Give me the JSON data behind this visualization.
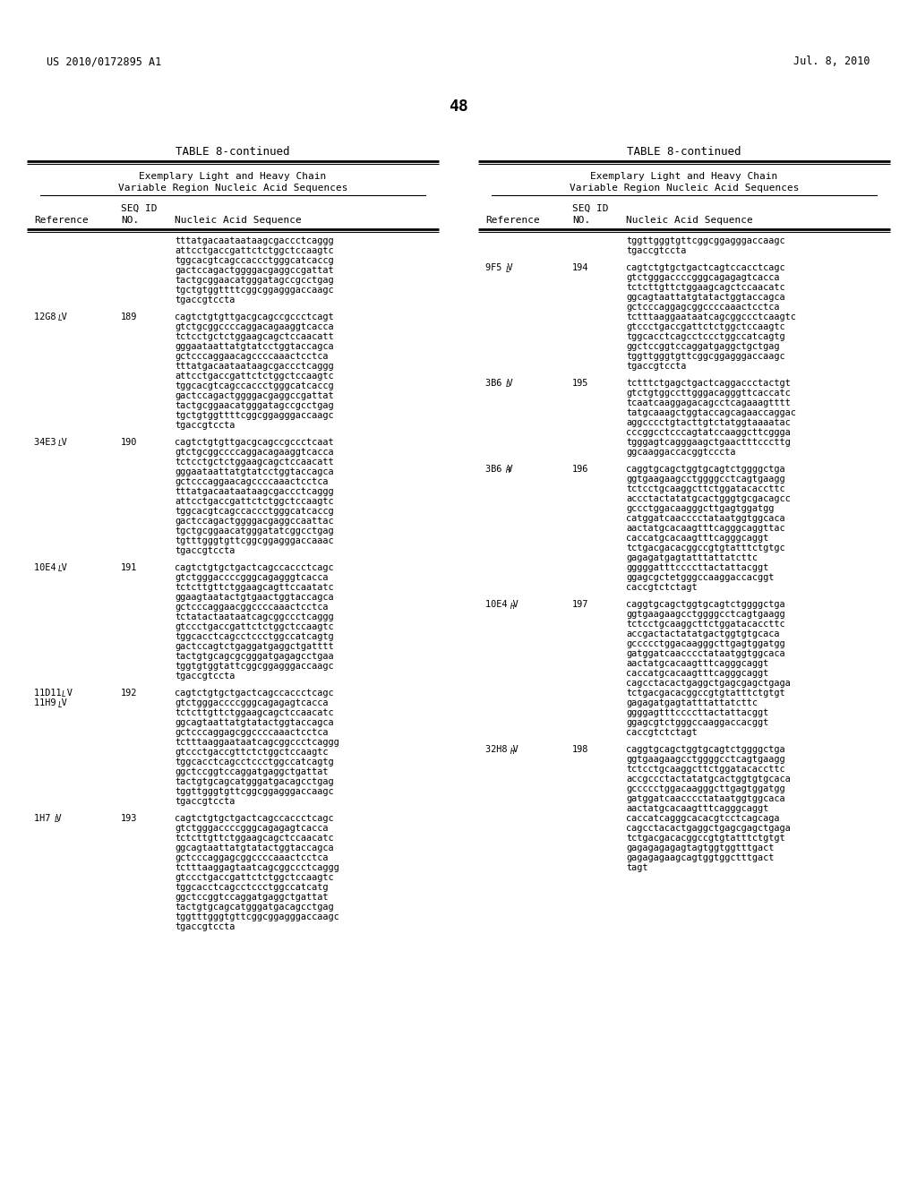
{
  "page_header_left": "US 2010/0172895 A1",
  "page_header_right": "Jul. 8, 2010",
  "page_number": "48",
  "table_title": "TABLE 8-continued",
  "subtitle1": "Exemplary Light and Heavy Chain",
  "subtitle2": "Variable Region Nucleic Acid Sequences",
  "background_color": "#ffffff",
  "left_entries": [
    {
      "ref": "",
      "ref2": "",
      "seq_id": "",
      "sequence": [
        "tttatgacaataataagcgaccctcaggg",
        "attcctgaccgattctctggctccaagtc",
        "tggcacgtcagccaccctgggcatcaccg",
        "gactccagactggggacgaggccgattat",
        "tactgcggaacatgggatagccgcctgag",
        "tgctgtggttttcggcggagggaccaagc",
        "tgaccgtccta"
      ]
    },
    {
      "ref": "12G8 V",
      "ref_sub": "L",
      "ref2": "",
      "seq_id": "189",
      "sequence": [
        "cagtctgtgttgacgcagccgccctcagt",
        "gtctgcggccccaggacagaaggtcacca",
        "tctcctgctctggaagcagctccaacatt",
        "gggaataattatgtatcctggtaccagca",
        "gctcccaggaacagccccaaactcctca",
        "tttatgacaataataagcgaccctcaggg",
        "attcctgaccgattctctggctccaagtc",
        "tggcacgtcagccaccctgggcatcaccg",
        "gactccagactggggacgaggccgattat",
        "tactgcggaacatgggatagccgcctgag",
        "tgctgtggttttcggcggagggaccaagc",
        "tgaccgtccta"
      ]
    },
    {
      "ref": "34E3 V",
      "ref_sub": "L",
      "ref2": "",
      "seq_id": "190",
      "sequence": [
        "cagtctgtgttgacgcagccgccctcaat",
        "gtctgcggccccaggacagaaggtcacca",
        "tctcctgctctggaagcagctccaacatt",
        "gggaataattatgtatcctggtaccagca",
        "gctcccaggaacagccccaaactcctca",
        "tttatgacaataataagcgaccctcaggg",
        "attcctgaccgattctctggctccaagtc",
        "tggcacgtcagccaccctgggcatcaccg",
        "gactccagactggggacgaggccaattac",
        "tgctgcggaacatgggatatcggcctgag",
        "tgtttgggtgttcggcggagggaccaaac",
        "tgaccgtccta"
      ]
    },
    {
      "ref": "10E4 V",
      "ref_sub": "L",
      "ref2": "",
      "seq_id": "191",
      "sequence": [
        "cagtctgtgctgactcagccaccctcagc",
        "gtctgggaccccgggcagagggtcacca",
        "tctcttgttctggaagcagttccaatatc",
        "ggaagtaatactgtgaactggtaccagca",
        "gctcccaggaacggccccaaactcctca",
        "tctatactaataatcagcggccctcaggg",
        "gtccctgaccgattctctggctccaagtc",
        "tggcacctcagcctccctggccatcagtg",
        "gactccagtctgaggatgaggctgatttt",
        "tactgtgcagcgcgggatgagagcctgaa",
        "tggtgtggtattcggcggagggaccaagc",
        "tgaccgtccta"
      ]
    },
    {
      "ref": "11D11 V",
      "ref_sub": "L",
      "ref2": "11H9 V",
      "ref2_sub": "L",
      "seq_id": "192",
      "sequence": [
        "cagtctgtgctgactcagccaccctcagc",
        "gtctgggaccccgggcagagagtcacca",
        "tctcttgttctggaagcagctccaacatc",
        "ggcagtaattatgtatactggtaccagca",
        "gctcccaggagcggccccaaactcctca",
        "tctttaaggaataatcagcggccctcaggg",
        "gtccctgaccgttctctggctccaagtc",
        "tggcacctcagcctccctggccatcagtg",
        "ggctccggtccaggatgaggctgattat",
        "tactgtgcagcatgggatgacagcctgag",
        "tggttgggtgttcggcggagggaccaagc",
        "tgaccgtccta"
      ]
    },
    {
      "ref": "1H7 V",
      "ref_sub": "L",
      "ref2": "",
      "seq_id": "193",
      "sequence": [
        "cagtctgtgctgactcagccaccctcagc",
        "gtctgggaccccgggcagagagtcacca",
        "tctcttgttctggaagcagctccaacatc",
        "ggcagtaattatgtatactggtaccagca",
        "gctcccaggagcggccccaaactcctca",
        "tctttaaggagtaatcagcggccctcaggg",
        "gtccctgaccgattctctggctccaagtc",
        "tggcacctcagcctccctggccatcatg",
        "ggctccggtccaggatgaggctgattat",
        "tactgtgcagcatgggatgacagcctgag",
        "tggtttgggtgttcggcggagggaccaagc",
        "tgaccgtccta"
      ]
    }
  ],
  "right_entries": [
    {
      "ref": "",
      "ref2": "",
      "seq_id": "",
      "sequence": [
        "tggttgggtgttcggcggagggaccaagc",
        "tgaccgtccta"
      ]
    },
    {
      "ref": "9F5 V",
      "ref_sub": "L",
      "ref2": "",
      "seq_id": "194",
      "sequence": [
        "cagtctgtgctgactcagtccacctcagc",
        "gtctgggaccccgggcagagagtcacca",
        "tctcttgttctggaagcagctccaacatc",
        "ggcagtaattatgtatactggtaccagca",
        "gctcccaggagcggccccaaactcctca",
        "tctttaaggaataatcagcggccctcaagtc",
        "gtccctgaccgattctctggctccaagtc",
        "tggcacctcagcctccctggccatcagtg",
        "ggctccggtccaggatgaggctgctgag",
        "tggttgggtgttcggcggagggaccaagc",
        "tgaccgtccta"
      ]
    },
    {
      "ref": "3B6 V",
      "ref_sub": "L",
      "ref2": "",
      "seq_id": "195",
      "sequence": [
        "tctttctgagctgactcaggaccctactgt",
        "gtctgtggccttgggacagggttcaccatc",
        "tcaatcaaggagacagcctcagaaagtttt",
        "tatgcaaagctggtaccagcagaaccaggac",
        "aggcccctgtacttgtctatggtaaaatac",
        "cccggcctcccagtatccaaggcttcggga",
        "tgggagtcagggaagctgaactttcccttg",
        "ggcaaggaccacggtcccta"
      ]
    },
    {
      "ref": "3B6 V",
      "ref_sub": "H",
      "ref2": "",
      "seq_id": "196",
      "sequence": [
        "caggtgcagctggtgcagtctggggctga",
        "ggtgaagaagcctggggcctcagtgaagg",
        "tctcctgcaaggcttctggatacaccttc",
        "accctactatatgcactgggtgcgacagcc",
        "gccctggacaagggcttgagtggatgg",
        "catggatcaacccctataatggtggcaca",
        "aactatgcacaagtttcagggcaggttac",
        "caccatgcacaagtttcagggcaggt",
        "tctgacgacacggccgtgtatttctgtgc",
        "gagagatgagtatttattatcttc",
        "gggggatttccccttactattacggt",
        "ggagcgctetgggccaaggaccacggt",
        "caccgtctctagt"
      ]
    },
    {
      "ref": "10E4 V",
      "ref_sub": "H",
      "ref2": "",
      "seq_id": "197",
      "sequence": [
        "caggtgcagctggtgcagtctggggctga",
        "ggtgaagaagcctggggcctcagtgaagg",
        "tctcctgcaaggcttctggatacaccttc",
        "accgactactatatgactggtgtgcaca",
        "gccccctggacaagggcttgagtggatgg",
        "gatggatcaacccctataatggtggcaca",
        "aactatgcacaagtttcagggcaggt",
        "caccatgcacaagtttcagggcaggt",
        "cagcctacactgaggctgagcgagctgaga",
        "tctgacgacacggccgtgtatttctgtgt",
        "gagagatgagtatttattatcttc",
        "ggggagtttccccttactattacggt",
        "ggagcgtctgggccaaggaccacggt",
        "caccgtctctagt"
      ]
    },
    {
      "ref": "32H8 V",
      "ref_sub": "H",
      "ref2": "",
      "seq_id": "198",
      "sequence": [
        "caggtgcagctggtgcagtctggggctga",
        "ggtgaagaagcctggggcctcagtgaagg",
        "tctcctgcaaggcttctggatacaccttc",
        "accgccctactatatgcactggtgtgcaca",
        "gccccctggacaagggcttgagtggatgg",
        "gatggatcaacccctataatggtggcaca",
        "aactatgcacaagtttcagggcaggt",
        "caccatcagggcacacgtcctcagcaga",
        "cagcctacactgaggctgagcgagctgaga",
        "tctgacgacacggccgtgtatttctgtgt",
        "gagagagagagtagtggtggtttgact",
        "gagagagaagcagtggtggctttgact",
        "tagt"
      ]
    }
  ]
}
